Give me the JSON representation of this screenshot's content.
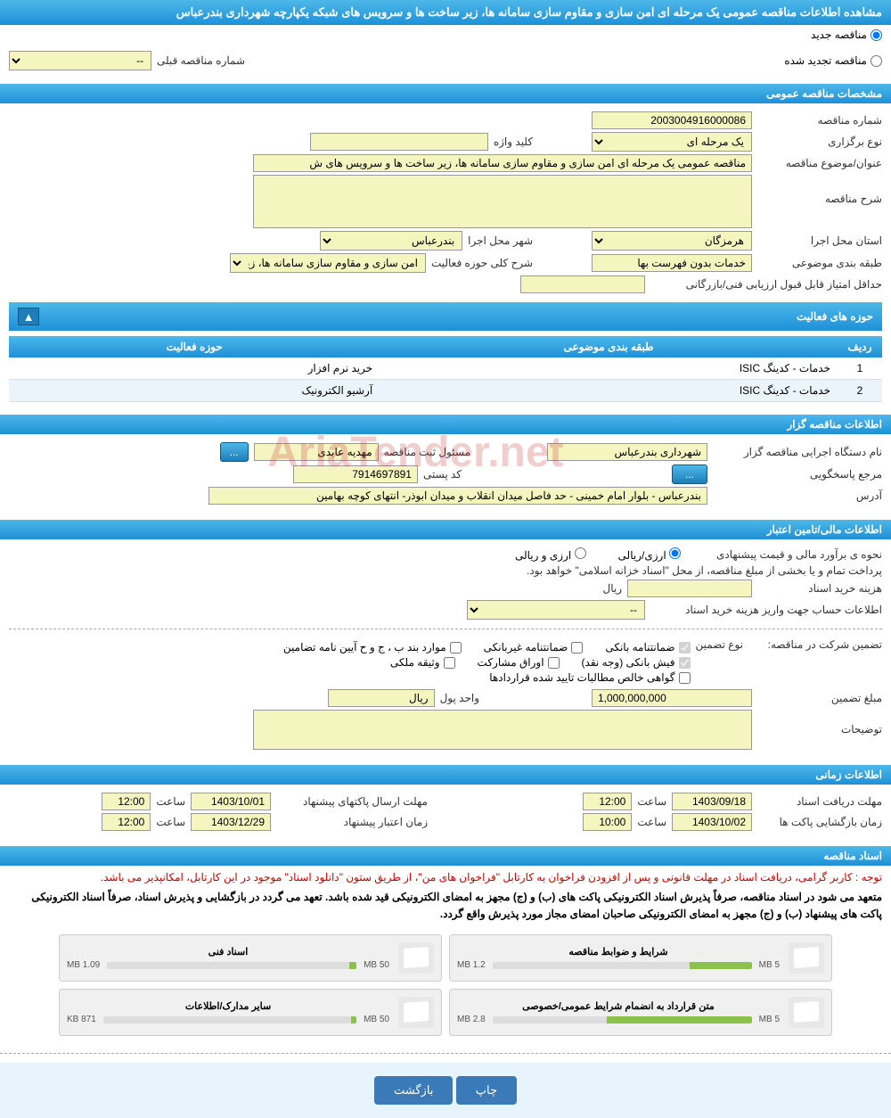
{
  "header": "مشاهده اطلاعات مناقصه عمومی یک مرحله ای امن سازی و مقاوم سازی سامانه ها، زیر ساخت ها و سرویس های شبکه یکپارچه شهرداری بندرعباس",
  "tender_type": {
    "new": "مناقصه جدید",
    "renewed": "مناقصه تجدید شده",
    "prev_label": "شماره مناقصه قبلی",
    "prev_value": "--"
  },
  "sections": {
    "general": "مشخصات مناقصه عمومی",
    "holder": "اطلاعات مناقصه گزار",
    "financial": "اطلاعات مالی/تامین اعتبار",
    "timing": "اطلاعات زمانی",
    "docs": "اسناد مناقصه"
  },
  "general": {
    "number_label": "شماره مناقصه",
    "number": "2003004916000086",
    "type_label": "نوع برگزاری",
    "type": "یک مرحله ای",
    "keyword_label": "کلید واژه",
    "keyword": "",
    "subject_label": "عنوان/موضوع مناقصه",
    "subject": "مناقصه عمومی یک مرحله ای امن سازی و مقاوم سازی سامانه ها، زیر ساخت ها و سرویس های ش",
    "desc_label": "شرح مناقصه",
    "desc": "",
    "province_label": "استان محل اجرا",
    "province": "هرمزگان",
    "city_label": "شهر محل اجرا",
    "city": "بندرعباس",
    "category_label": "طبقه بندی موضوعی",
    "category": "خدمات بدون فهرست بها",
    "scope_label": "شرح کلی حوزه فعالیت",
    "scope": "امن سازی و مقاوم سازی سامانه ها، زیر ساخت ...",
    "min_score_label": "حداقل امتیاز قابل قبول ارزیابی فنی/بازرگانی",
    "min_score": ""
  },
  "activity": {
    "title": "حوزه های فعالیت",
    "col_row": "ردیف",
    "col_cat": "طبقه بندی موضوعی",
    "col_scope": "حوزه فعالیت",
    "rows": [
      {
        "n": "1",
        "cat": "خدمات - کدینگ ISIC",
        "scope": "خرید نرم افزار"
      },
      {
        "n": "2",
        "cat": "خدمات - کدینگ ISIC",
        "scope": "آرشیو الکترونیک"
      }
    ]
  },
  "holder": {
    "org_label": "نام دستگاه اجرایی مناقصه گزار",
    "org": "شهرداری بندرعباس",
    "reg_label": "مسئول ثبت مناقصه",
    "reg": "مهدیه عابدی",
    "more": "...",
    "ref_label": "مرجع پاسخگویی",
    "ref_btn": "...",
    "postal_label": "کد پستی",
    "postal": "7914697891",
    "addr_label": "آدرس",
    "addr": "بندرعباس - بلوار امام خمینی - حد فاصل میدان انقلاب و میدان ابوذر- انتهای کوچه بهامین"
  },
  "financial": {
    "estimate_label": "نحوه ی برآورد مالی و قیمت پیشنهادی",
    "opt_arzi": "ارزی/ریالی",
    "opt_rial": "ارزی و ریالی",
    "treasury_note": "پرداخت تمام و یا بخشی از مبلغ مناقصه، از محل \"اسناد خزانه اسلامی\" خواهد بود.",
    "doc_cost_label": "هزینه خرید اسناد",
    "unit_rial": "ریال",
    "account_label": "اطلاعات حساب جهت واریز هزینه خرید اسناد",
    "account_value": "--",
    "guarantee_label": "تضمین شرکت در مناقصه:",
    "guarantee_type_label": "نوع تضمین",
    "g_bank": "ضمانتنامه بانکی",
    "g_nonbank": "ضمانتنامه غیربانکی",
    "g_items": "موارد بند ب ، ج و ح آیین نامه تضامین",
    "g_cash": "فیش بانکی (وجه نقد)",
    "g_shares": "اوراق مشارکت",
    "g_property": "وثیقه ملکی",
    "g_receivable": "گواهی خالص مطالبات تایید شده قراردادها",
    "amount_label": "مبلغ تضمین",
    "amount": "1,000,000,000",
    "unit_label": "واحد پول",
    "unit": "ریال",
    "notes_label": "توضیحات"
  },
  "timing": {
    "receive_label": "مهلت دریافت اسناد",
    "receive_date": "1403/09/18",
    "receive_time": "12:00",
    "send_label": "مهلت ارسال پاکتهای پیشنهاد",
    "send_date": "1403/10/01",
    "send_time": "12:00",
    "open_label": "زمان بازگشایی پاکت ها",
    "open_date": "1403/10/02",
    "open_time": "10:00",
    "valid_label": "زمان اعتبار پیشنهاد",
    "valid_date": "1403/12/29",
    "valid_time": "12:00",
    "time_word": "ساعت"
  },
  "docs": {
    "red_note": "توجه : کاربر گرامی، دریافت اسناد در مهلت قانونی و پس از افزودن فراخوان به کارتابل \"فراخوان های من\"، از طریق ستون \"دانلود اسناد\" موجود در این کارتابل، امکانپذیر می باشد.",
    "bold_note": "متعهد می شود در اسناد مناقصه، صرفاً پذیرش اسناد الکترونیکی پاکت های (ب) و (ج) مجهز به امضای الکترونیکی قید شده باشد. تعهد می گردد در بازگشایی و پذیرش اسناد، صرفاً اسناد الکترونیکی پاکت های پیشنهاد (ب) و (ج) مجهز به امضای الکترونیکی صاحبان امضای مجاز مورد پذیرش واقع گردد.",
    "files": [
      {
        "title": "شرایط و ضوابط مناقصه",
        "used": "1.2 MB",
        "max": "5 MB",
        "pct": 24
      },
      {
        "title": "اسناد فنی",
        "used": "1.09 MB",
        "max": "50 MB",
        "pct": 3
      },
      {
        "title": "متن قرارداد به انضمام شرایط عمومی/خصوصی",
        "used": "2.8 MB",
        "max": "5 MB",
        "pct": 56
      },
      {
        "title": "سایر مدارک/اطلاعات",
        "used": "871 KB",
        "max": "50 MB",
        "pct": 2
      }
    ]
  },
  "footer": {
    "print": "چاپ",
    "back": "بازگشت"
  },
  "colors": {
    "header_bg": "#2ba0da",
    "field_bg": "#f5f5c0",
    "progress": "#8bc34a"
  }
}
